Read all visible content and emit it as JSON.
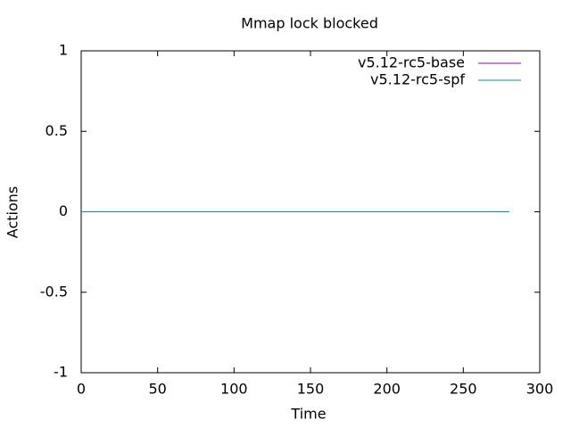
{
  "chart_data": {
    "type": "line",
    "title": "Mmap lock blocked",
    "xlabel": "Time",
    "ylabel": "Actions",
    "x": [
      0,
      280
    ],
    "series": [
      {
        "name": "v5.12-rc5-base",
        "color": "#9400d3",
        "values": [
          0,
          0
        ]
      },
      {
        "name": "v5.12-rc5-spf",
        "color": "#009e73",
        "values": [
          0,
          0
        ]
      }
    ],
    "xlim": [
      0,
      300
    ],
    "xticks": [
      0,
      50,
      100,
      150,
      200,
      250,
      300
    ],
    "ylim": [
      -1,
      1
    ],
    "yticks": [
      -1,
      -0.5,
      0,
      0.5,
      1
    ],
    "legend": "top-right"
  }
}
